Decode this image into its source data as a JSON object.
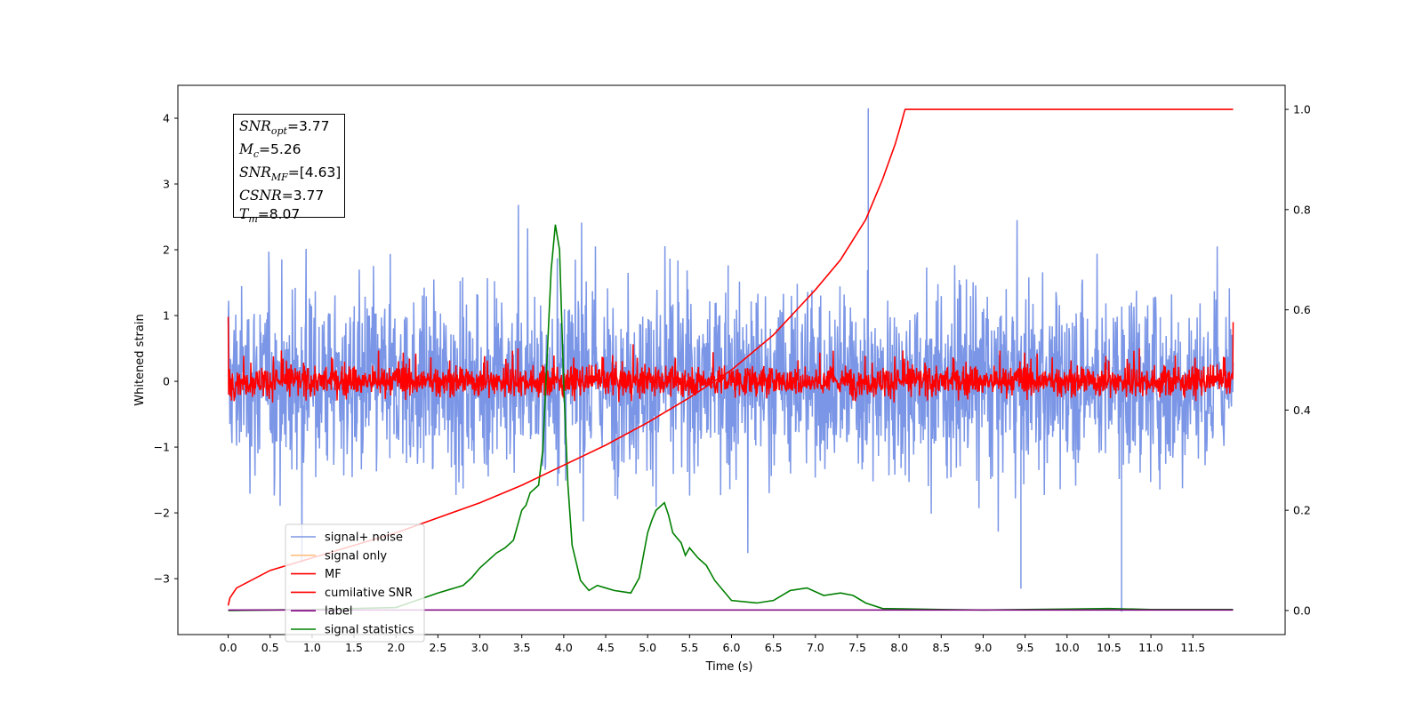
{
  "chart_data": {
    "type": "line",
    "xlabel": "Time (s)",
    "ylabel": "Whitened strain",
    "xlim": [
      -0.6,
      12.6
    ],
    "ylim": [
      -3.85,
      4.5
    ],
    "y2lim": [
      -0.048,
      1.048
    ],
    "x_ticks": [
      "0.0",
      "0.5",
      "1.0",
      "1.5",
      "2.0",
      "2.5",
      "3.0",
      "3.5",
      "4.0",
      "4.5",
      "5.0",
      "5.5",
      "6.0",
      "6.5",
      "7.0",
      "7.5",
      "8.0",
      "8.5",
      "9.0",
      "9.5",
      "10.0",
      "10.5",
      "11.0",
      "11.5"
    ],
    "y_ticks": [
      "4",
      "3",
      "2",
      "1",
      "0",
      "−1",
      "−2",
      "−3"
    ],
    "y2_ticks": [
      "1.0",
      "0.8",
      "0.6",
      "0.4",
      "0.2",
      "0.0"
    ],
    "annotation": {
      "snr_opt": {
        "symbol": "SNR",
        "sub": "opt",
        "value": "=3.77"
      },
      "mc": {
        "symbol": "M",
        "sub": "c",
        "value": "=5.26"
      },
      "snr_mf": {
        "symbol": "SNR",
        "sub": "MF",
        "value": "=[4.63]"
      },
      "csnr": {
        "symbol": "CSNR",
        "sub": "",
        "value": "=3.77"
      },
      "tm": {
        "symbol": "T",
        "sub": "m",
        "value": "=8.07"
      }
    },
    "legend_position": "lower-left",
    "series": [
      {
        "name": "signal+ noise",
        "color": "#7b96e6",
        "axis": "left",
        "description_range": [
          -2.75,
          4.15
        ],
        "x_range": [
          0.0,
          11.98
        ],
        "outliers": [
          {
            "x": 7.63,
            "y": 4.15
          },
          {
            "x": 10.65,
            "y": -3.5
          },
          {
            "x": 9.45,
            "y": -3.15
          }
        ]
      },
      {
        "name": "signal only",
        "color": "#ffbf7f",
        "axis": "left",
        "x": [],
        "y": []
      },
      {
        "name": "MF",
        "color": "#ff0000",
        "axis": "left",
        "description_range": [
          -0.35,
          0.9
        ],
        "x_range": [
          0.0,
          11.98
        ]
      },
      {
        "name": "cumilative SNR",
        "color": "#ff0000",
        "axis": "right",
        "x": [
          0.0,
          0.02,
          0.1,
          0.5,
          1.0,
          1.5,
          2.0,
          2.5,
          3.0,
          3.5,
          4.0,
          4.5,
          5.0,
          5.5,
          6.0,
          6.5,
          7.0,
          7.3,
          7.6,
          7.8,
          7.95,
          8.02,
          8.06,
          8.07,
          11.98
        ],
        "y": [
          0.01,
          0.025,
          0.045,
          0.08,
          0.105,
          0.13,
          0.155,
          0.185,
          0.215,
          0.25,
          0.29,
          0.33,
          0.375,
          0.425,
          0.48,
          0.55,
          0.64,
          0.7,
          0.78,
          0.86,
          0.93,
          0.97,
          0.995,
          1.0,
          1.0
        ]
      },
      {
        "name": "label",
        "color": "#800080",
        "axis": "right",
        "x": [
          0.0,
          11.98
        ],
        "y": [
          0.001,
          0.001
        ]
      },
      {
        "name": "signal statistics",
        "color": "#008000",
        "axis": "right",
        "x": [
          0.0,
          1.0,
          2.0,
          2.5,
          2.8,
          2.9,
          3.0,
          3.1,
          3.2,
          3.3,
          3.4,
          3.5,
          3.55,
          3.6,
          3.7,
          3.75,
          3.8,
          3.85,
          3.9,
          3.95,
          4.0,
          4.05,
          4.1,
          4.2,
          4.3,
          4.4,
          4.5,
          4.6,
          4.8,
          4.9,
          5.0,
          5.05,
          5.1,
          5.2,
          5.25,
          5.3,
          5.4,
          5.45,
          5.5,
          5.6,
          5.7,
          5.8,
          6.0,
          6.3,
          6.5,
          6.7,
          6.9,
          7.1,
          7.3,
          7.45,
          7.6,
          7.8,
          8.5,
          9.0,
          10.0,
          10.5,
          11.0,
          11.98
        ],
        "y": [
          0.0,
          0.002,
          0.006,
          0.035,
          0.05,
          0.065,
          0.085,
          0.1,
          0.115,
          0.125,
          0.14,
          0.2,
          0.21,
          0.235,
          0.25,
          0.32,
          0.5,
          0.68,
          0.77,
          0.72,
          0.45,
          0.25,
          0.13,
          0.06,
          0.04,
          0.05,
          0.045,
          0.04,
          0.035,
          0.065,
          0.155,
          0.18,
          0.2,
          0.215,
          0.19,
          0.155,
          0.135,
          0.11,
          0.125,
          0.105,
          0.09,
          0.06,
          0.02,
          0.015,
          0.02,
          0.04,
          0.045,
          0.03,
          0.035,
          0.03,
          0.015,
          0.004,
          0.002,
          0.001,
          0.003,
          0.004,
          0.002,
          0.002
        ]
      }
    ]
  }
}
